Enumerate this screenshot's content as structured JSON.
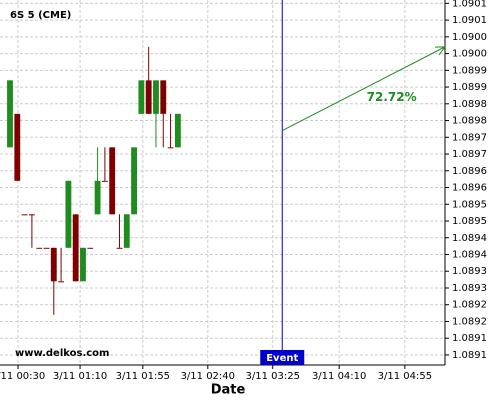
{
  "chart_data": {
    "type": "candlestick",
    "title": "6S 5 (CME)",
    "watermark": "www.delkos.com",
    "x_label": "Date",
    "up_color": "#1e8c1e",
    "down_color": "#800000",
    "open": [
      1.08969,
      1.08979,
      1.08949,
      1.08949,
      1.08939,
      1.08939,
      1.08939,
      1.08929,
      1.08939,
      1.08949,
      1.08929,
      1.08939,
      1.08949,
      1.08959,
      1.08969,
      1.08939,
      1.08939,
      1.08949,
      1.08979,
      1.08989,
      1.08979,
      1.08989,
      1.08969,
      1.08969
    ],
    "high": [
      1.08989,
      1.08979,
      1.08949,
      1.08949,
      1.08939,
      1.08939,
      1.08939,
      1.08939,
      1.08959,
      1.08949,
      1.08939,
      1.08939,
      1.08969,
      1.08969,
      1.08969,
      1.08949,
      1.08949,
      1.08969,
      1.08989,
      1.08999,
      1.08989,
      1.08989,
      1.08979,
      1.08979
    ],
    "low": [
      1.08969,
      1.08959,
      1.08949,
      1.08939,
      1.08939,
      1.08939,
      1.08919,
      1.08929,
      1.08939,
      1.08929,
      1.08929,
      1.08939,
      1.08949,
      1.08959,
      1.08949,
      1.08939,
      1.08939,
      1.08949,
      1.08979,
      1.08979,
      1.08969,
      1.08969,
      1.08969,
      1.08969
    ],
    "close": [
      1.08989,
      1.08959,
      1.08949,
      1.08949,
      1.08939,
      1.08939,
      1.08929,
      1.08929,
      1.08959,
      1.08929,
      1.08939,
      1.08939,
      1.08959,
      1.08959,
      1.08949,
      1.08939,
      1.08949,
      1.08969,
      1.08989,
      1.08979,
      1.08989,
      1.08979,
      1.08969,
      1.08979
    ],
    "xlim": [
      -1.37,
      59.6
    ],
    "xticks": [
      {
        "value": 1.1,
        "label": "3/11 00:30"
      },
      {
        "value": 9.6,
        "label": "3/11 01:10"
      },
      {
        "value": 18.2,
        "label": "3/11 01:55"
      },
      {
        "value": 27.1,
        "label": "3/11 02:40"
      },
      {
        "value": 36.0,
        "label": "3/11 03:25"
      },
      {
        "value": 45.1,
        "label": "3/11 04:10"
      },
      {
        "value": 54.1,
        "label": "3/11 04:55"
      }
    ],
    "ylim": [
      1.08904,
      1.09013
    ],
    "yticks": [
      {
        "value": 1.09012,
        "label": "1.0901"
      },
      {
        "value": 1.09007,
        "label": "1.0901"
      },
      {
        "value": 1.09002,
        "label": "1.0900"
      },
      {
        "value": 1.08997,
        "label": "1.0900"
      },
      {
        "value": 1.08992,
        "label": "1.0899"
      },
      {
        "value": 1.08987,
        "label": "1.0899"
      },
      {
        "value": 1.08982,
        "label": "1.0898"
      },
      {
        "value": 1.08977,
        "label": "1.0898"
      },
      {
        "value": 1.08972,
        "label": "1.0897"
      },
      {
        "value": 1.08967,
        "label": "1.0897"
      },
      {
        "value": 1.08962,
        "label": "1.0896"
      },
      {
        "value": 1.08957,
        "label": "1.0896"
      },
      {
        "value": 1.08952,
        "label": "1.0895"
      },
      {
        "value": 1.08947,
        "label": "1.0895"
      },
      {
        "value": 1.08942,
        "label": "1.0894"
      },
      {
        "value": 1.08937,
        "label": "1.0894"
      },
      {
        "value": 1.08932,
        "label": "1.0893"
      },
      {
        "value": 1.08927,
        "label": "1.0893"
      },
      {
        "value": 1.08922,
        "label": "1.0892"
      },
      {
        "value": 1.08917,
        "label": "1.0892"
      },
      {
        "value": 1.08912,
        "label": "1.0891"
      },
      {
        "value": 1.08907,
        "label": "1.0891"
      }
    ],
    "grid": true,
    "event": {
      "label": "Event",
      "x": 37.3,
      "color": "#0000cc"
    },
    "arrow": {
      "x": [
        37.3,
        59.6
      ],
      "y": [
        1.08974,
        1.08999
      ],
      "label": "72.72%",
      "color": "#1e8c1e"
    }
  }
}
